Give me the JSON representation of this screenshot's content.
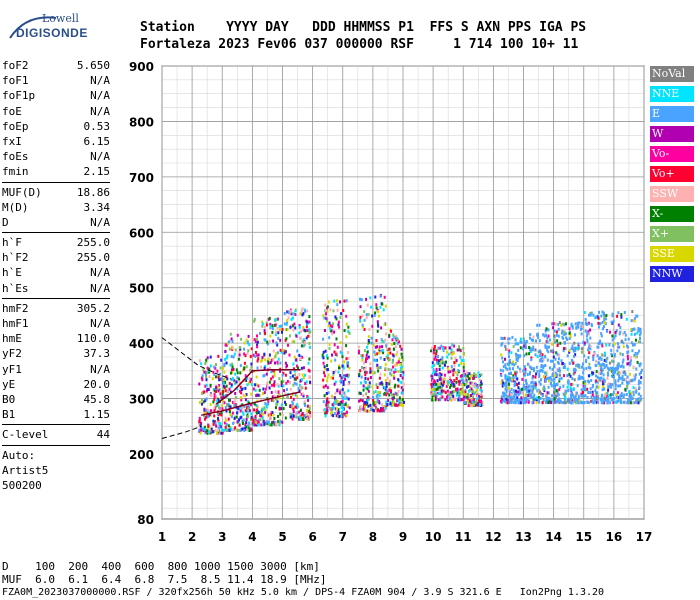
{
  "logo": {
    "top": "Lowell",
    "main": "DIGISONDE"
  },
  "header": {
    "line1": "Station    YYYY DAY   DDD HHMMSS P1  FFS S AXN PPS IGA PS",
    "line2": "Fortaleza 2023 Fev06 037 000000 RSF     1 714 100 10+ 11"
  },
  "params": {
    "group1": [
      {
        "label": "foF2",
        "value": "5.650"
      },
      {
        "label": "foF1",
        "value": "N/A"
      },
      {
        "label": "foF1p",
        "value": "N/A"
      },
      {
        "label": "foE",
        "value": "N/A"
      },
      {
        "label": "foEp",
        "value": "0.53"
      },
      {
        "label": "fxI",
        "value": "6.15"
      },
      {
        "label": "foEs",
        "value": "N/A"
      },
      {
        "label": "fmin",
        "value": "2.15"
      }
    ],
    "group2": [
      {
        "label": "MUF(D)",
        "value": "18.86"
      },
      {
        "label": "M(D)",
        "value": "3.34"
      },
      {
        "label": "D",
        "value": "N/A"
      }
    ],
    "group3": [
      {
        "label": "h`F",
        "value": "255.0"
      },
      {
        "label": "h`F2",
        "value": "255.0"
      },
      {
        "label": "h`E",
        "value": "N/A"
      },
      {
        "label": "h`Es",
        "value": "N/A"
      }
    ],
    "group4": [
      {
        "label": "hmF2",
        "value": "305.2"
      },
      {
        "label": "hmF1",
        "value": "N/A"
      },
      {
        "label": "hmE",
        "value": "110.0"
      },
      {
        "label": "yF2",
        "value": "37.3"
      },
      {
        "label": "yF1",
        "value": "N/A"
      },
      {
        "label": "yE",
        "value": "20.0"
      },
      {
        "label": "B0",
        "value": "45.8"
      },
      {
        "label": "B1",
        "value": "1.15"
      }
    ],
    "group5": [
      {
        "label": "C-level",
        "value": "44"
      }
    ],
    "auto": [
      "Auto:",
      "Artist5",
      "500200"
    ]
  },
  "bottom": {
    "d_row": "D    100  200  400  600  800 1000 1500 3000 [km]",
    "muf_row": "MUF  6.0  6.1  6.4  6.8  7.5  8.5 11.4 18.9 [MHz]",
    "footer": "FZA0M_2023037000000.RSF / 320fx256h 50 kHz 5.0 km / DPS-4 FZA0M 904 / 3.9 S 321.6 E   Ion2Png 1.3.20"
  },
  "legend": [
    {
      "label": "NoVal",
      "color": "#808080"
    },
    {
      "label": "NNE",
      "color": "#00e5ff"
    },
    {
      "label": "E",
      "color": "#4aa3ff"
    },
    {
      "label": "W",
      "color": "#b000b0"
    },
    {
      "label": "Vo-",
      "color": "#ff00a0"
    },
    {
      "label": "Vo+",
      "color": "#ff0030"
    },
    {
      "label": "SSW",
      "color": "#ffb0b0"
    },
    {
      "label": "X-",
      "color": "#008000"
    },
    {
      "label": "X+",
      "color": "#80c060"
    },
    {
      "label": "SSE",
      "color": "#d8d800"
    },
    {
      "label": "NNW",
      "color": "#2020e0"
    }
  ],
  "chart_data": {
    "type": "scatter",
    "title": "",
    "xlabel": "",
    "ylabel": "",
    "xlim": [
      1,
      17
    ],
    "ylim": [
      80,
      900
    ],
    "x_ticks": [
      1,
      2,
      3,
      4,
      5,
      6,
      7,
      8,
      9,
      10,
      11,
      12,
      13,
      14,
      15,
      16,
      17
    ],
    "y_ticks": [
      80,
      200,
      300,
      400,
      500,
      600,
      700,
      800,
      900
    ],
    "grid": true,
    "echo_bands": [
      {
        "x0": 2.2,
        "x1": 3.0,
        "y0": 240,
        "y1": 380
      },
      {
        "x0": 3.0,
        "x1": 4.0,
        "y0": 245,
        "y1": 420
      },
      {
        "x0": 4.0,
        "x1": 5.0,
        "y0": 255,
        "y1": 450
      },
      {
        "x0": 5.0,
        "x1": 5.9,
        "y0": 265,
        "y1": 470
      },
      {
        "x0": 6.3,
        "x1": 7.2,
        "y0": 270,
        "y1": 480
      },
      {
        "x0": 7.5,
        "x1": 8.4,
        "y0": 280,
        "y1": 490
      },
      {
        "x0": 8.4,
        "x1": 9.0,
        "y0": 290,
        "y1": 430
      },
      {
        "x0": 9.9,
        "x1": 11.0,
        "y0": 300,
        "y1": 400
      },
      {
        "x0": 11.0,
        "x1": 11.6,
        "y0": 290,
        "y1": 350
      },
      {
        "x0": 12.2,
        "x1": 13.4,
        "y0": 295,
        "y1": 420
      },
      {
        "x0": 13.4,
        "x1": 15.0,
        "y0": 295,
        "y1": 440
      },
      {
        "x0": 15.0,
        "x1": 16.9,
        "y0": 295,
        "y1": 460
      }
    ],
    "trace_lower": [
      [
        2.3,
        270
      ],
      [
        3.0,
        278
      ],
      [
        4.0,
        292
      ],
      [
        5.0,
        305
      ],
      [
        5.6,
        312
      ]
    ],
    "trace_upper": [
      [
        2.8,
        290
      ],
      [
        3.4,
        315
      ],
      [
        4.0,
        350
      ],
      [
        4.6,
        352
      ],
      [
        5.6,
        352
      ]
    ],
    "dashed_lower": [
      [
        1.0,
        228
      ],
      [
        1.8,
        240
      ],
      [
        2.3,
        250
      ]
    ],
    "dashed_upper": [
      [
        1.0,
        410
      ],
      [
        1.6,
        385
      ],
      [
        2.2,
        360
      ],
      [
        2.8,
        345
      ],
      [
        3.3,
        335
      ]
    ]
  }
}
